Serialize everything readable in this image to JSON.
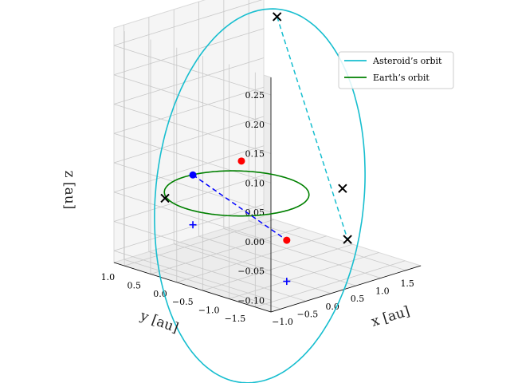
{
  "chart_data": {
    "type": "line3d",
    "title": "",
    "xlabel": "x [au]",
    "ylabel": "y [au]",
    "zlabel": "z [au]",
    "xticks": [
      "−1.0",
      "−0.5",
      "0.0",
      "0.5",
      "1.0",
      "1.5"
    ],
    "yticks": [
      "1.0",
      "0.5",
      "0.0",
      "−0.5",
      "−1.0",
      "−1.5"
    ],
    "zticks": [
      "0.25",
      "0.20",
      "0.15",
      "0.10",
      "0.05",
      "0.00",
      "−0.05",
      "−0.10"
    ],
    "xlim": [
      -1.2,
      1.8
    ],
    "ylim": [
      -1.8,
      1.2
    ],
    "zlim": [
      -0.12,
      0.28
    ],
    "grid": true,
    "legend_position": "top-right",
    "series": [
      {
        "name": "Asteroid’s orbit",
        "kind": "ellipse",
        "color": "#17becf",
        "semi_major_au": 1.457,
        "eccentricity": 0.223,
        "inclination_deg": 10.8,
        "ascending_node_deg": 304.3,
        "perihelion_arg_deg": 178.9
      },
      {
        "name": "Earth’s orbit",
        "kind": "circle",
        "color": "#008000",
        "radius_au": 1.0
      }
    ],
    "markers": [
      {
        "kind": "x",
        "color": "#000000",
        "points": [
          [
            1.23,
            -0.85,
            0.0
          ],
          [
            -0.88,
            0.53,
            0.0
          ],
          [
            1.28,
            0.45,
            0.255
          ],
          [
            0.68,
            -1.47,
            -0.055
          ]
        ]
      },
      {
        "kind": "dot",
        "color": "#ff0000",
        "points": [
          [
            -0.15,
            -1.1,
            -0.045
          ],
          [
            0.86,
            0.73,
            0.012
          ]
        ]
      },
      {
        "kind": "dot",
        "color": "#0000ff",
        "points": [
          [
            0.15,
            0.98,
            0.0
          ]
        ]
      },
      {
        "kind": "plus",
        "color": "#0000ff",
        "points": [
          [
            0.15,
            0.98,
            -0.085
          ],
          [
            -0.15,
            -1.1,
            -0.115
          ]
        ]
      }
    ],
    "dashed_lines": [
      {
        "color": "#17becf",
        "from": [
          1.28,
          0.45,
          0.255
        ],
        "to": [
          0.68,
          -1.47,
          -0.055
        ]
      },
      {
        "color": "#0000ff",
        "from": [
          0.15,
          0.98,
          0.0
        ],
        "to": [
          -0.15,
          -1.1,
          -0.045
        ]
      }
    ]
  }
}
